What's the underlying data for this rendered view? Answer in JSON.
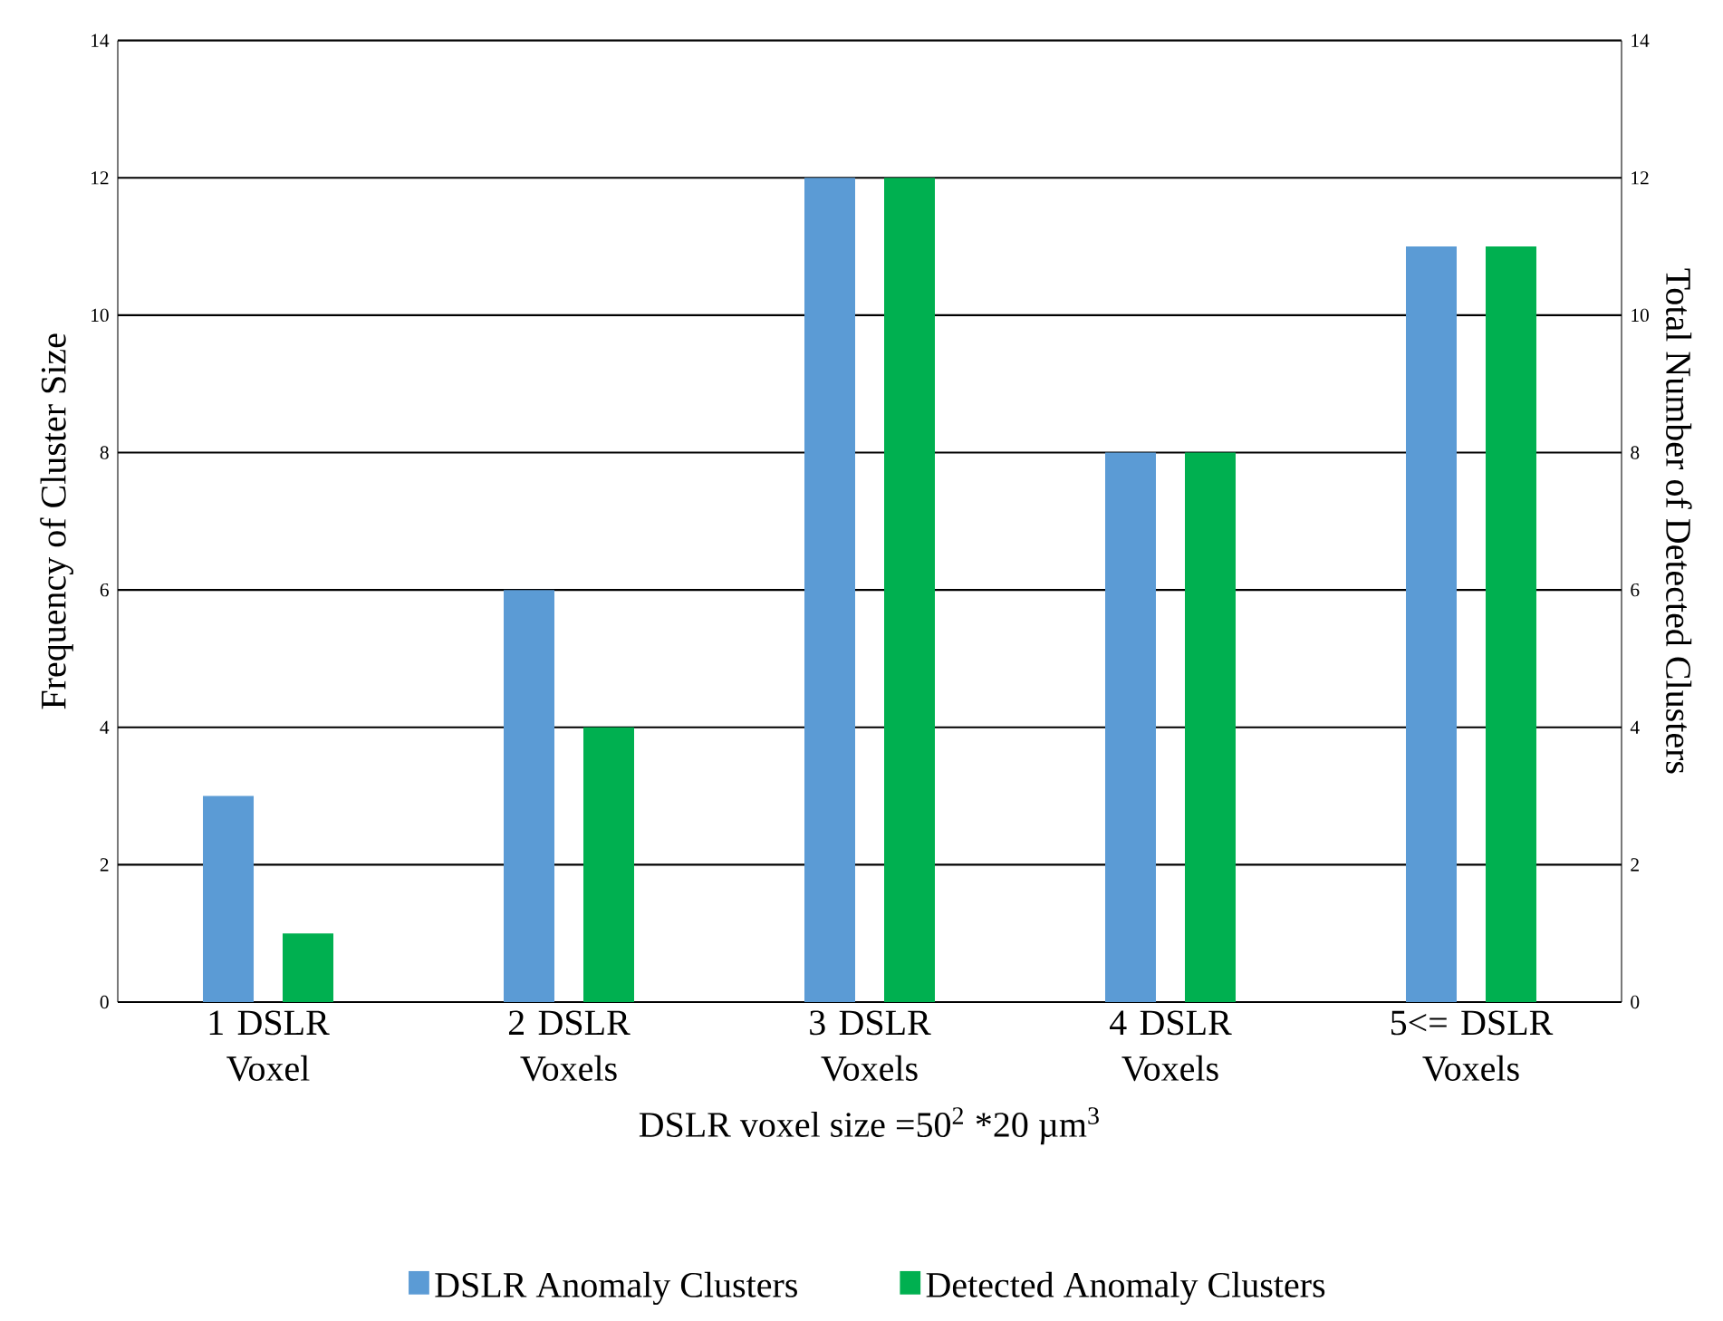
{
  "chart_data": {
    "type": "bar",
    "categories": [
      "1 DSLR Voxel",
      "2 DSLR Voxels",
      "3 DSLR Voxels",
      "4 DSLR Voxels",
      "5<= DSLR Voxels"
    ],
    "series": [
      {
        "name": "DSLR Anomaly Clusters",
        "color": "#5b9bd5",
        "values": [
          3,
          6,
          12,
          8,
          11
        ]
      },
      {
        "name": "Detected Anomaly Clusters",
        "color": "#00b050",
        "values": [
          1,
          4,
          12,
          8,
          11
        ]
      }
    ],
    "xlabel": "DSLR voxel size =50$^{2}$ *20 µm$^{3}$",
    "ylabel": "Frequency of Cluster Size",
    "y2label": "Total Number of Detected Clusters",
    "ylim": [
      0,
      14
    ],
    "yticks": [
      0,
      2,
      4,
      6,
      8,
      10,
      12,
      14
    ],
    "y2lim": [
      0,
      14
    ],
    "y2ticks": [
      0,
      2,
      4,
      6,
      8,
      10,
      12,
      14
    ],
    "grid": "y",
    "legend": "bottom"
  }
}
